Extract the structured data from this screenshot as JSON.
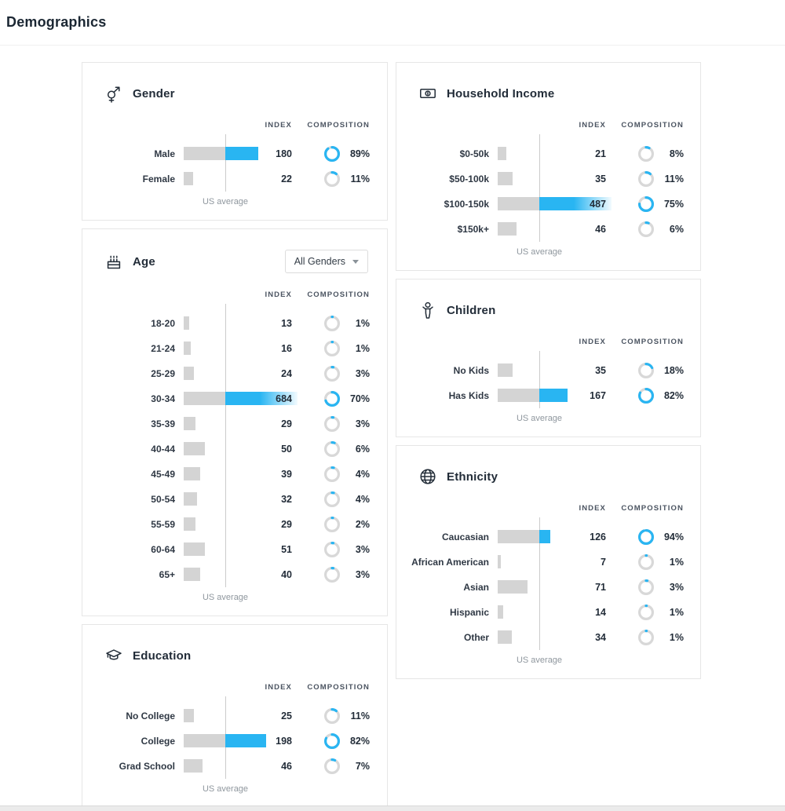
{
  "page": {
    "title": "Demographics"
  },
  "labels": {
    "index_header": "INDEX",
    "composition_header": "COMPOSITION",
    "us_average": "US average"
  },
  "colors": {
    "accent_blue": "#29b5f2",
    "bar_gray": "#d4d4d4",
    "donut_track_gray": "#d8d8d8",
    "us_average_line": "#cbcbcb"
  },
  "chart_data": [
    {
      "id": "gender",
      "type": "bar",
      "panel": "left",
      "title": "Gender",
      "icon": "gender-icon",
      "us_average_index": 100,
      "categories": [
        "Male",
        "Female"
      ],
      "series": [
        {
          "name": "Index",
          "values": [
            180,
            22
          ]
        },
        {
          "name": "Composition %",
          "values": [
            89,
            11
          ]
        }
      ]
    },
    {
      "id": "age",
      "type": "bar",
      "panel": "left",
      "title": "Age",
      "icon": "cake-icon",
      "filter_label": "All Genders",
      "us_average_index": 100,
      "categories": [
        "18-20",
        "21-24",
        "25-29",
        "30-34",
        "35-39",
        "40-44",
        "45-49",
        "50-54",
        "55-59",
        "60-64",
        "65+"
      ],
      "series": [
        {
          "name": "Index",
          "values": [
            13,
            16,
            24,
            684,
            29,
            50,
            39,
            32,
            29,
            51,
            40
          ]
        },
        {
          "name": "Composition %",
          "values": [
            1,
            1,
            3,
            70,
            3,
            6,
            4,
            4,
            2,
            3,
            3
          ]
        }
      ]
    },
    {
      "id": "education",
      "type": "bar",
      "panel": "left",
      "title": "Education",
      "icon": "grad-cap-icon",
      "us_average_index": 100,
      "categories": [
        "No College",
        "College",
        "Grad School"
      ],
      "series": [
        {
          "name": "Index",
          "values": [
            25,
            198,
            46
          ]
        },
        {
          "name": "Composition %",
          "values": [
            11,
            82,
            7
          ]
        }
      ]
    },
    {
      "id": "household_income",
      "type": "bar",
      "panel": "right",
      "title": "Household Income",
      "icon": "money-icon",
      "us_average_index": 100,
      "categories": [
        "$0-50k",
        "$50-100k",
        "$100-150k",
        "$150k+"
      ],
      "series": [
        {
          "name": "Index",
          "values": [
            21,
            35,
            487,
            46
          ]
        },
        {
          "name": "Composition %",
          "values": [
            8,
            11,
            75,
            6
          ]
        }
      ]
    },
    {
      "id": "children",
      "type": "bar",
      "panel": "right",
      "title": "Children",
      "icon": "child-icon",
      "us_average_index": 100,
      "categories": [
        "No Kids",
        "Has Kids"
      ],
      "series": [
        {
          "name": "Index",
          "values": [
            35,
            167
          ]
        },
        {
          "name": "Composition %",
          "values": [
            18,
            82
          ]
        }
      ]
    },
    {
      "id": "ethnicity",
      "type": "bar",
      "panel": "right",
      "title": "Ethnicity",
      "icon": "globe-icon",
      "us_average_index": 100,
      "categories": [
        "Caucasian",
        "African American",
        "Asian",
        "Hispanic",
        "Other"
      ],
      "series": [
        {
          "name": "Index",
          "values": [
            126,
            7,
            71,
            14,
            34
          ]
        },
        {
          "name": "Composition %",
          "values": [
            94,
            1,
            3,
            1,
            1
          ]
        }
      ]
    }
  ]
}
